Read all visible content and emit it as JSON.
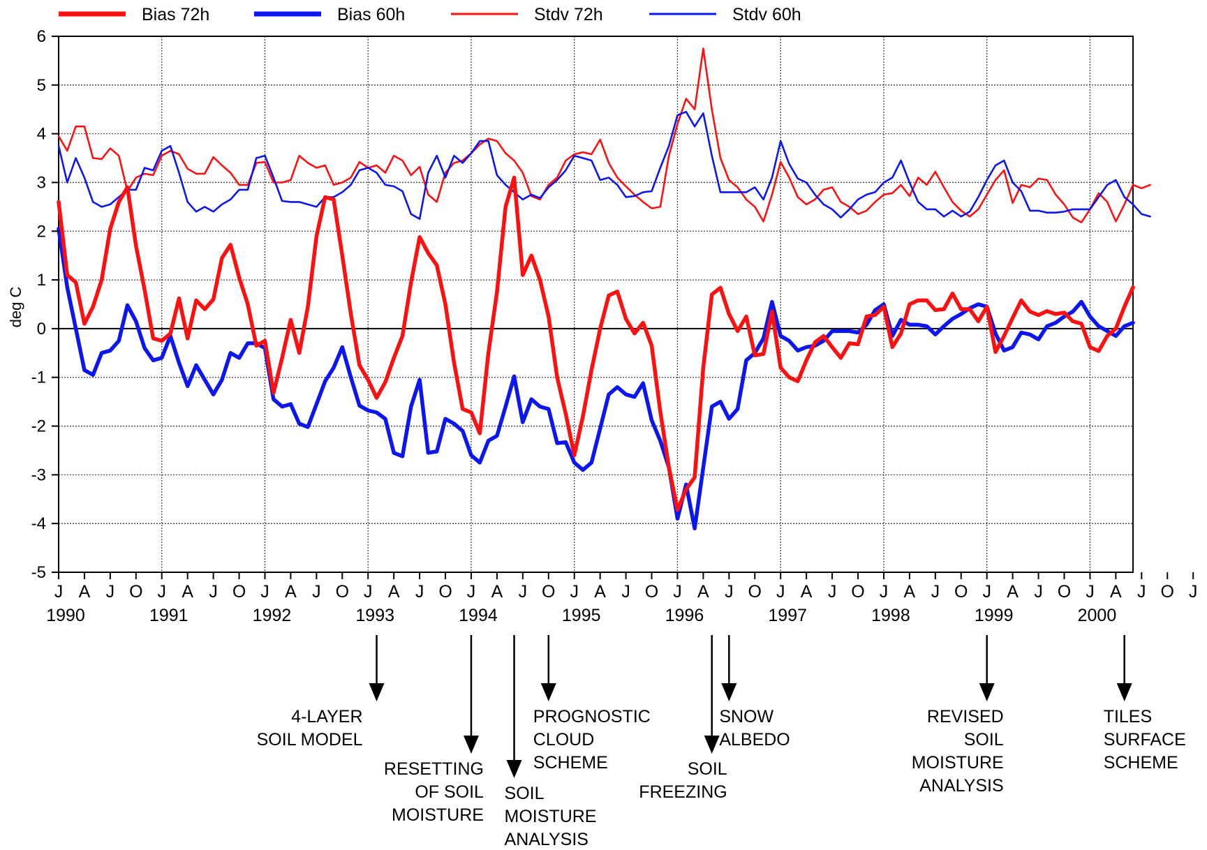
{
  "chart_data": {
    "type": "line",
    "title": "",
    "xlabel": "",
    "ylabel": "deg C",
    "ylim": [
      -5,
      6
    ],
    "yticks": [
      -5,
      -4,
      -3,
      -2,
      -1,
      0,
      1,
      2,
      3,
      4,
      5,
      6
    ],
    "grid": true,
    "legend_placement": "top",
    "x_start": "1990-07",
    "x_end": "2000-12",
    "month_ticks": [
      "J",
      "A",
      "J",
      "O",
      "J",
      "A",
      "J",
      "O",
      "J",
      "A",
      "J",
      "O",
      "J",
      "A",
      "J",
      "O",
      "J",
      "A",
      "J",
      "O",
      "J",
      "A",
      "J",
      "O",
      "J",
      "A",
      "J",
      "O",
      "J",
      "A",
      "J",
      "O",
      "J",
      "A",
      "J",
      "O",
      "J",
      "A",
      "J",
      "O",
      "J",
      "A",
      "J",
      "O",
      "J",
      "A"
    ],
    "year_labels": [
      "1990",
      "1991",
      "1992",
      "1993",
      "1994",
      "1995",
      "1996",
      "1997",
      "1998",
      "1999",
      "2000"
    ],
    "series": [
      {
        "name": "Bias 72h",
        "color": "#ff1010",
        "style": "thick",
        "values": [
          2.6,
          1.1,
          0.95,
          0.1,
          0.45,
          1.0,
          2.05,
          2.6,
          2.9,
          1.7,
          0.8,
          -0.2,
          -0.25,
          -0.1,
          0.62,
          -0.2,
          0.58,
          0.4,
          0.6,
          1.45,
          1.72,
          1.05,
          0.5,
          -0.35,
          -0.25,
          -1.32,
          -0.6,
          0.18,
          -0.5,
          0.45,
          1.9,
          2.7,
          2.65,
          1.5,
          0.3,
          -0.75,
          -1.05,
          -1.42,
          -1.1,
          -0.6,
          -0.15,
          0.95,
          1.88,
          1.55,
          1.3,
          0.5,
          -0.7,
          -1.65,
          -1.72,
          -2.15,
          -0.5,
          0.75,
          2.5,
          3.1,
          1.1,
          1.5,
          1.0,
          0.25,
          -1.0,
          -1.75,
          -2.6,
          -1.8,
          -0.85,
          0.0,
          0.68,
          0.76,
          0.2,
          -0.1,
          0.12,
          -0.35,
          -1.7,
          -2.85,
          -3.72,
          -3.3,
          -3.05,
          -0.8,
          0.7,
          0.84,
          0.3,
          -0.05,
          0.25,
          -0.55,
          -0.52,
          0.35,
          -0.8,
          -1.0,
          -1.08,
          -0.65,
          -0.28,
          -0.15,
          -0.38,
          -0.6,
          -0.3,
          -0.32,
          0.25,
          0.28,
          0.45,
          -0.38,
          -0.1,
          0.5,
          0.58,
          0.58,
          0.38,
          0.4,
          0.72,
          0.4,
          0.4,
          0.15,
          0.45,
          -0.48,
          -0.15,
          0.22,
          0.58,
          0.35,
          0.28,
          0.36,
          0.3,
          0.33,
          0.15,
          0.1,
          -0.38,
          -0.46,
          -0.15,
          0.0,
          0.45,
          0.85
        ]
      },
      {
        "name": "Bias 60h",
        "color": "#0c16f0",
        "style": "thick",
        "values": [
          2.05,
          0.85,
          0.0,
          -0.85,
          -0.95,
          -0.5,
          -0.45,
          -0.25,
          0.48,
          0.15,
          -0.4,
          -0.65,
          -0.6,
          -0.15,
          -0.7,
          -1.18,
          -0.75,
          -1.05,
          -1.35,
          -1.05,
          -0.5,
          -0.6,
          -0.3,
          -0.3,
          -0.4,
          -1.45,
          -1.6,
          -1.55,
          -1.95,
          -2.02,
          -1.55,
          -1.08,
          -0.8,
          -0.38,
          -1.0,
          -1.58,
          -1.68,
          -1.72,
          -1.85,
          -2.55,
          -2.62,
          -1.6,
          -1.05,
          -2.55,
          -2.52,
          -1.85,
          -1.95,
          -2.1,
          -2.6,
          -2.75,
          -2.3,
          -2.2,
          -1.6,
          -0.98,
          -1.92,
          -1.45,
          -1.6,
          -1.65,
          -2.35,
          -2.33,
          -2.75,
          -2.9,
          -2.75,
          -2.05,
          -1.35,
          -1.2,
          -1.35,
          -1.4,
          -1.12,
          -1.88,
          -2.3,
          -2.85,
          -3.9,
          -3.2,
          -4.1,
          -2.85,
          -1.6,
          -1.5,
          -1.85,
          -1.65,
          -0.65,
          -0.5,
          -0.2,
          0.55,
          -0.15,
          -0.25,
          -0.45,
          -0.38,
          -0.35,
          -0.25,
          -0.05,
          -0.05,
          -0.05,
          -0.08,
          0.08,
          0.38,
          0.5,
          -0.15,
          0.18,
          0.08,
          0.08,
          0.05,
          -0.12,
          0.05,
          0.2,
          0.3,
          0.42,
          0.5,
          0.45,
          -0.1,
          -0.45,
          -0.38,
          -0.08,
          -0.12,
          -0.22,
          0.05,
          0.12,
          0.25,
          0.35,
          0.55,
          0.25,
          0.05,
          -0.05,
          -0.15,
          0.05,
          0.12
        ]
      },
      {
        "name": "Stdv 72h",
        "color": "#ff1010",
        "style": "thin",
        "values": [
          3.95,
          3.65,
          4.15,
          4.15,
          3.5,
          3.48,
          3.7,
          3.55,
          2.82,
          3.1,
          3.18,
          3.15,
          3.55,
          3.65,
          3.58,
          3.28,
          3.18,
          3.18,
          3.52,
          3.35,
          3.2,
          2.95,
          2.95,
          3.4,
          3.42,
          3.0,
          3.0,
          3.05,
          3.55,
          3.4,
          3.3,
          3.35,
          2.95,
          3.0,
          3.1,
          3.42,
          3.3,
          3.35,
          3.2,
          3.55,
          3.45,
          3.15,
          3.32,
          2.75,
          2.6,
          3.2,
          3.4,
          3.45,
          3.6,
          3.78,
          3.9,
          3.85,
          3.6,
          3.45,
          3.2,
          2.72,
          2.65,
          2.95,
          3.1,
          3.45,
          3.58,
          3.62,
          3.58,
          3.88,
          3.4,
          3.1,
          2.92,
          2.75,
          2.6,
          2.47,
          2.5,
          3.55,
          4.2,
          4.72,
          4.5,
          5.75,
          4.5,
          3.5,
          3.05,
          2.9,
          2.65,
          2.5,
          2.2,
          2.75,
          3.42,
          3.1,
          2.7,
          2.55,
          2.65,
          2.85,
          2.9,
          2.6,
          2.5,
          2.35,
          2.42,
          2.6,
          2.75,
          2.78,
          2.95,
          2.72,
          3.1,
          2.95,
          3.22,
          2.9,
          2.6,
          2.42,
          2.3,
          2.45,
          2.75,
          3.05,
          3.25,
          2.58,
          2.95,
          2.9,
          3.08,
          3.05,
          2.75,
          2.55,
          2.28,
          2.18,
          2.45,
          2.78,
          2.6,
          2.2,
          2.55,
          2.95,
          2.88,
          2.95
        ]
      },
      {
        "name": "Stdv 60h",
        "color": "#0c16f0",
        "style": "thin",
        "values": [
          3.75,
          3.0,
          3.5,
          3.1,
          2.6,
          2.5,
          2.55,
          2.7,
          2.85,
          2.85,
          3.3,
          3.25,
          3.65,
          3.75,
          3.2,
          2.6,
          2.4,
          2.5,
          2.4,
          2.55,
          2.65,
          2.85,
          2.85,
          3.5,
          3.55,
          3.1,
          2.62,
          2.6,
          2.6,
          2.55,
          2.5,
          2.7,
          2.7,
          2.8,
          2.95,
          3.25,
          3.3,
          3.2,
          2.95,
          2.92,
          2.82,
          2.35,
          2.25,
          3.2,
          3.55,
          3.1,
          3.55,
          3.4,
          3.6,
          3.85,
          3.85,
          3.15,
          2.95,
          2.8,
          2.65,
          2.75,
          2.68,
          2.9,
          3.05,
          3.25,
          3.55,
          3.5,
          3.45,
          3.05,
          3.1,
          2.95,
          2.7,
          2.72,
          2.8,
          2.82,
          3.3,
          3.75,
          4.38,
          4.45,
          4.15,
          4.42,
          3.55,
          2.8,
          2.8,
          2.8,
          2.8,
          2.9,
          2.65,
          3.1,
          3.85,
          3.38,
          3.08,
          3.0,
          2.75,
          2.55,
          2.45,
          2.28,
          2.45,
          2.65,
          2.75,
          2.8,
          3.0,
          3.1,
          3.45,
          3.0,
          2.6,
          2.45,
          2.45,
          2.3,
          2.42,
          2.3,
          2.4,
          2.7,
          3.05,
          3.35,
          3.45,
          3.0,
          2.82,
          2.42,
          2.42,
          2.38,
          2.38,
          2.4,
          2.45,
          2.45,
          2.45,
          2.7,
          2.95,
          3.05,
          2.7,
          2.55,
          2.35,
          2.3
        ]
      }
    ],
    "annotations": [
      {
        "lines": [
          "4-LAYER",
          "SOIL MODEL"
        ],
        "date": "1993-08"
      },
      {
        "lines": [
          "RESETTING",
          "OF SOIL",
          "MOISTURE"
        ],
        "date": "1994-07"
      },
      {
        "lines": [
          "SOIL",
          "MOISTURE",
          "ANALYSIS"
        ],
        "date": "1994-12"
      },
      {
        "lines": [
          "PROGNOSTIC",
          "CLOUD",
          "SCHEME"
        ],
        "date": "1995-04"
      },
      {
        "lines": [
          "SOIL",
          "FREEZING"
        ],
        "date": "1996-11"
      },
      {
        "lines": [
          "SNOW",
          "ALBEDO"
        ],
        "date": "1997-01"
      },
      {
        "lines": [
          "REVISED",
          "SOIL",
          "MOISTURE",
          "ANALYSIS"
        ],
        "date": "1999-07"
      },
      {
        "lines": [
          "TILES",
          "SURFACE",
          "SCHEME"
        ],
        "date": "2000-11"
      }
    ]
  }
}
